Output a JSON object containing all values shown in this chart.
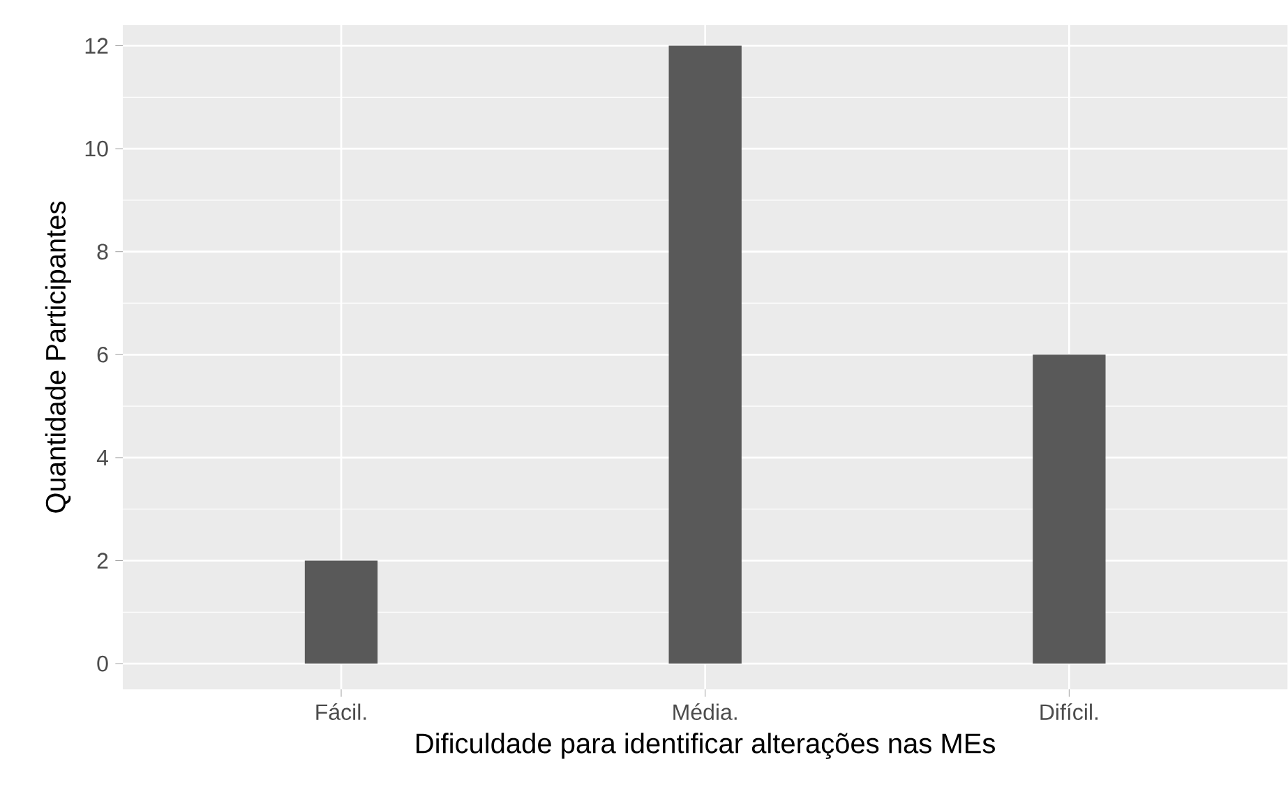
{
  "chart_data": {
    "type": "bar",
    "xlabel": "Dificuldade para identificar alterações nas MEs",
    "ylabel": "Quantidade Participantes",
    "categories": [
      "Fácil.",
      "Média.",
      "Difícil."
    ],
    "values": [
      2,
      12,
      6
    ],
    "color": "#595959",
    "ylim": [
      -0.5,
      12.4
    ],
    "yticks": [
      0,
      2,
      4,
      6,
      8,
      10,
      12
    ],
    "grid": true
  }
}
